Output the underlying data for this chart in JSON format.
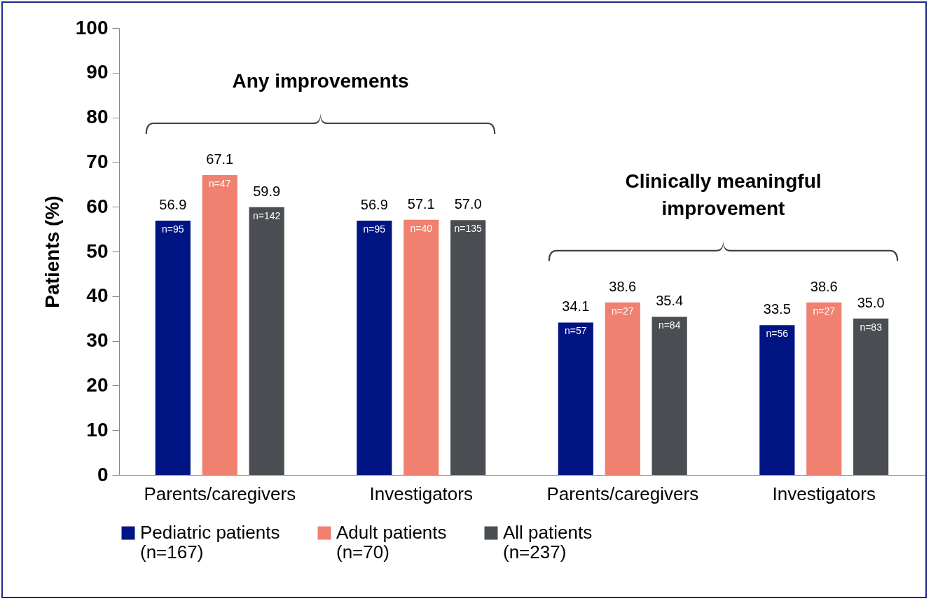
{
  "chart_data": {
    "type": "bar",
    "ylabel": "Patients (%)",
    "categories": [
      "Parents/caregivers",
      "Investigators",
      "Parents/caregivers",
      "Investigators"
    ],
    "series": [
      {
        "name": "Pediatric patients\n(n=167)",
        "color": "#001484",
        "values": [
          56.9,
          56.9,
          34.1,
          33.5
        ],
        "value_labels": [
          "56.9",
          "56.9",
          "34.1",
          "33.5"
        ]
      },
      {
        "name": "Adult patients\n(n=70)",
        "color": "#f08070",
        "values": [
          67.1,
          57.1,
          38.6,
          38.6
        ],
        "value_labels": [
          "67.1",
          "57.1",
          "38.6",
          "38.6"
        ]
      },
      {
        "name": "All patients\n(n=237)",
        "color": "#4a4d51",
        "values": [
          59.9,
          57.0,
          35.4,
          35.0
        ],
        "value_labels": [
          "59.9",
          "57.0",
          "35.4",
          "35.0"
        ]
      }
    ],
    "ylim": [
      0,
      100
    ],
    "yticks": [
      0,
      10,
      20,
      30,
      40,
      50,
      60,
      70,
      80,
      90,
      100
    ],
    "legend": "bottom",
    "annotations": [
      "Any improvements",
      "Clinically meaningful improvement",
      "n=95",
      "n=95",
      "n=57",
      "n=56",
      "n=47",
      "n=40",
      "n=27",
      "n=27",
      "n=142",
      "n=135",
      "n=84",
      "n=83"
    ]
  }
}
